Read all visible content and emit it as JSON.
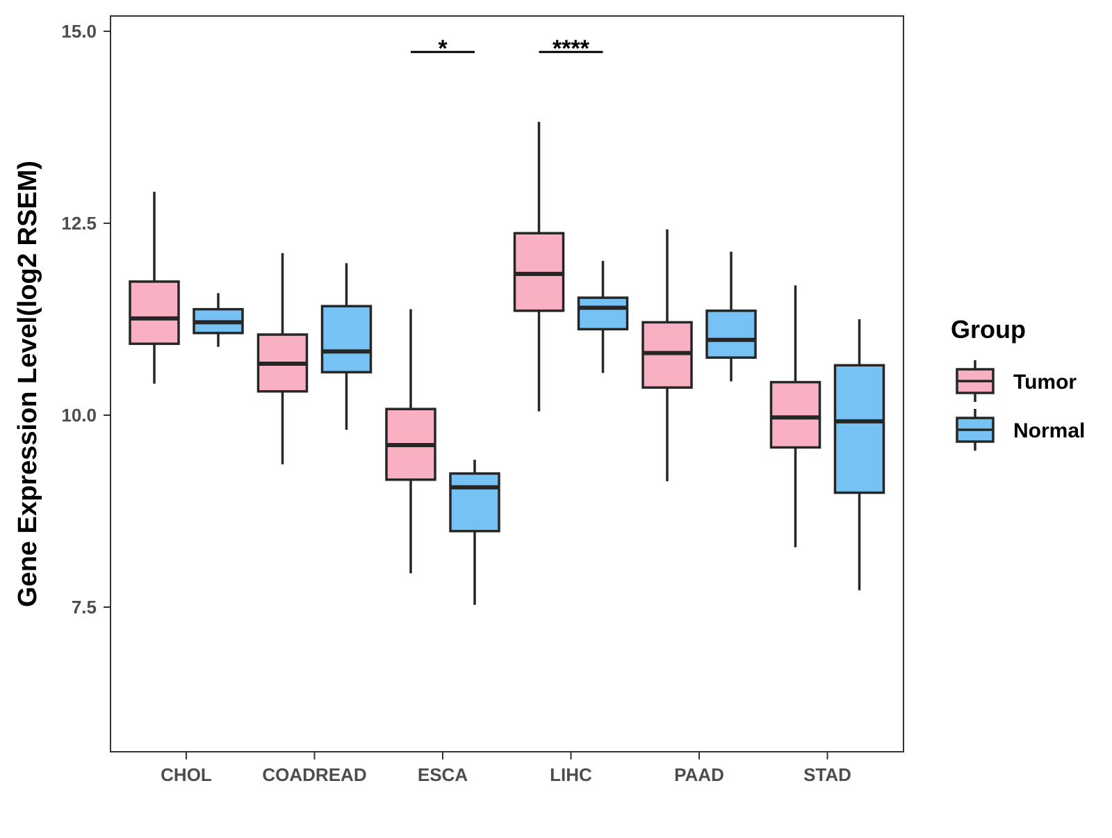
{
  "chart_data": {
    "type": "boxplot",
    "title": "",
    "xlabel": "",
    "ylabel": "Gene Expression Level(log2 RSEM)",
    "ylim": [
      5.8,
      15.2
    ],
    "yticks": [
      7.5,
      10.0,
      12.5,
      15.0
    ],
    "ytick_labels": [
      "7.5",
      "10.0",
      "12.5",
      "15.0"
    ],
    "categories": [
      "CHOL",
      "COADREAD",
      "ESCA",
      "LIHC",
      "PAAD",
      "STAD"
    ],
    "legend": {
      "title": "Group",
      "position": "right"
    },
    "series": [
      {
        "name": "Tumor",
        "color": "#f9b0c3",
        "boxes": [
          {
            "min": 10.41,
            "q1": 10.93,
            "median": 11.26,
            "q3": 11.74,
            "max": 12.91
          },
          {
            "min": 9.36,
            "q1": 10.31,
            "median": 10.67,
            "q3": 11.05,
            "max": 12.11
          },
          {
            "min": 7.94,
            "q1": 9.16,
            "median": 9.61,
            "q3": 10.08,
            "max": 11.38
          },
          {
            "min": 10.05,
            "q1": 11.36,
            "median": 11.84,
            "q3": 12.37,
            "max": 13.82
          },
          {
            "min": 9.14,
            "q1": 10.36,
            "median": 10.81,
            "q3": 11.21,
            "max": 12.42
          },
          {
            "min": 8.28,
            "q1": 9.58,
            "median": 9.97,
            "q3": 10.43,
            "max": 11.69
          }
        ]
      },
      {
        "name": "Normal",
        "color": "#77c2f5",
        "boxes": [
          {
            "min": 10.89,
            "q1": 11.07,
            "median": 11.21,
            "q3": 11.38,
            "max": 11.59
          },
          {
            "min": 9.81,
            "q1": 10.56,
            "median": 10.83,
            "q3": 11.42,
            "max": 11.98
          },
          {
            "min": 7.53,
            "q1": 8.49,
            "median": 9.06,
            "q3": 9.24,
            "max": 9.42
          },
          {
            "min": 10.55,
            "q1": 11.12,
            "median": 11.4,
            "q3": 11.53,
            "max": 12.01
          },
          {
            "min": 10.44,
            "q1": 10.75,
            "median": 10.98,
            "q3": 11.36,
            "max": 12.13
          },
          {
            "min": 7.72,
            "q1": 8.99,
            "median": 9.92,
            "q3": 10.65,
            "max": 11.25
          }
        ]
      }
    ],
    "significance": [
      {
        "category": "ESCA",
        "label": "*",
        "y": 14.73
      },
      {
        "category": "LIHC",
        "label": "****",
        "y": 14.73
      }
    ]
  }
}
